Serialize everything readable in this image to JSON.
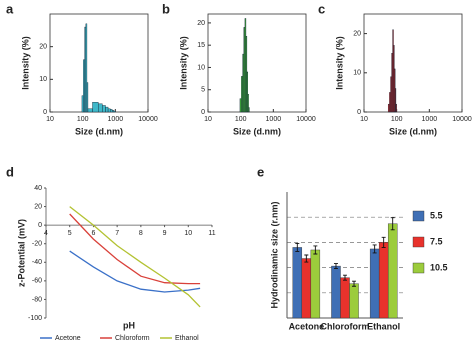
{
  "chart_data": [
    {
      "type": "histogram",
      "label": "a",
      "xlabel": "Size (d.nm)",
      "ylabel": "Intensity (%)",
      "color": "#3fb8c9",
      "xscale": "log",
      "bins": [
        95,
        105,
        115,
        125,
        135,
        145,
        200,
        300,
        400,
        500,
        600,
        700,
        800,
        900,
        1000
      ],
      "counts": [
        5,
        16,
        26,
        27,
        9,
        1,
        3,
        2.5,
        2,
        1.5,
        1,
        0.8,
        0.5,
        0.3
      ],
      "xlim": [
        10,
        10000
      ],
      "xticks": [
        10,
        100,
        1000,
        10000
      ],
      "ylim": [
        0,
        30
      ],
      "yticks": [
        0,
        10,
        20
      ]
    },
    {
      "type": "histogram",
      "label": "b",
      "xlabel": "Size (d.nm)",
      "ylabel": "Intensity (%)",
      "color": "#3fae3a",
      "xscale": "log",
      "bins": [
        95,
        105,
        115,
        125,
        135,
        145,
        155,
        165,
        175,
        185
      ],
      "counts": [
        3,
        8,
        13,
        19,
        21,
        17,
        9,
        4,
        1
      ],
      "xlim": [
        10,
        10000
      ],
      "xticks": [
        10,
        100,
        1000,
        10000
      ],
      "ylim": [
        0,
        22
      ],
      "yticks": [
        0,
        5,
        10,
        15,
        20
      ]
    },
    {
      "type": "histogram",
      "label": "c",
      "xlabel": "Size (d.nm)",
      "ylabel": "Intensity (%)",
      "color": "#c0282a",
      "xscale": "log",
      "bins": [
        55,
        60,
        65,
        70,
        75,
        80,
        85,
        90,
        95,
        100
      ],
      "counts": [
        2,
        5,
        9,
        15,
        21,
        17,
        11,
        6,
        2
      ],
      "xlim": [
        10,
        10000
      ],
      "xticks": [
        10,
        100,
        1000,
        10000
      ],
      "ylim": [
        0,
        25
      ],
      "yticks": [
        0,
        10,
        20
      ]
    },
    {
      "type": "line",
      "label": "d",
      "xlabel": "pH",
      "ylabel": "z-Potential (mV)",
      "x": [
        5,
        6,
        7,
        8,
        9,
        10,
        10.5
      ],
      "series": [
        {
          "name": "Acetone",
          "color": "#3a70c8",
          "values": [
            -28,
            -45,
            -60,
            -69,
            -72,
            -70,
            -68
          ]
        },
        {
          "name": "Chloroform",
          "color": "#d9413a",
          "values": [
            12,
            -15,
            -37,
            -55,
            -62,
            -63,
            -63
          ]
        },
        {
          "name": "Ethanol",
          "color": "#b3c232",
          "values": [
            20,
            0,
            -22,
            -40,
            -57,
            -75,
            -88
          ]
        }
      ],
      "xlim": [
        4,
        11
      ],
      "xticks": [
        4,
        5,
        6,
        7,
        8,
        9,
        10,
        11
      ],
      "ylim": [
        -100,
        40
      ],
      "yticks": [
        -100,
        -80,
        -60,
        -40,
        -20,
        0,
        20,
        40
      ]
    },
    {
      "type": "bar",
      "label": "e",
      "ylabel": "Hydrodinamic size (r.nm)",
      "categories": [
        "Acetone",
        "Chloroform",
        "Ethanol"
      ],
      "series": [
        {
          "name": "5.5",
          "color": "#3f6fb5",
          "values": [
            140,
            103,
            137
          ],
          "errors": [
            8,
            5,
            8
          ]
        },
        {
          "name": "7.5",
          "color": "#e8322c",
          "values": [
            118,
            80,
            150
          ],
          "errors": [
            7,
            5,
            10
          ]
        },
        {
          "name": "10.5",
          "color": "#9ccc3c",
          "values": [
            135,
            68,
            187
          ],
          "errors": [
            8,
            5,
            12
          ]
        }
      ],
      "ylim": [
        0,
        250
      ],
      "yticks": [
        50,
        100,
        150,
        200
      ],
      "grid": true
    }
  ]
}
